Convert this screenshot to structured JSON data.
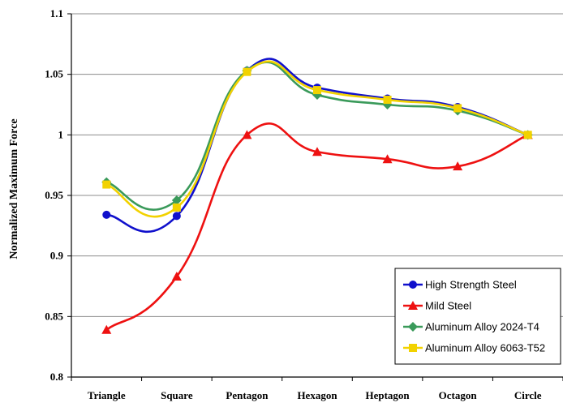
{
  "chart_data": {
    "type": "line",
    "title": "",
    "xlabel": "",
    "ylabel": "Normalized Maximum Force",
    "categories": [
      "Triangle",
      "Square",
      "Pentagon",
      "Hexagon",
      "Heptagon",
      "Octagon",
      "Circle"
    ],
    "ylim": [
      0.8,
      1.1
    ],
    "yticks": [
      "0.8",
      "0.85",
      "0.9",
      "0.95",
      "1",
      "1.05",
      "1.1"
    ],
    "grid": true,
    "legend_position": "bottom-right",
    "series": [
      {
        "name": "High Strength Steel",
        "color": "#1010cc",
        "marker": "circle",
        "values": [
          0.934,
          0.933,
          1.053,
          1.039,
          1.03,
          1.023,
          1.0
        ]
      },
      {
        "name": "Mild Steel",
        "color": "#ee1111",
        "marker": "triangle",
        "values": [
          0.839,
          0.883,
          1.0,
          0.986,
          0.98,
          0.974,
          1.0
        ]
      },
      {
        "name": "Aluminum Alloy 2024-T4",
        "color": "#3a9a5a",
        "marker": "diamond",
        "values": [
          0.961,
          0.946,
          1.053,
          1.033,
          1.025,
          1.02,
          1.0
        ]
      },
      {
        "name": "Aluminum Alloy 6063-T52",
        "color": "#f2d200",
        "marker": "square",
        "values": [
          0.959,
          0.94,
          1.052,
          1.037,
          1.029,
          1.022,
          1.0
        ]
      }
    ]
  }
}
